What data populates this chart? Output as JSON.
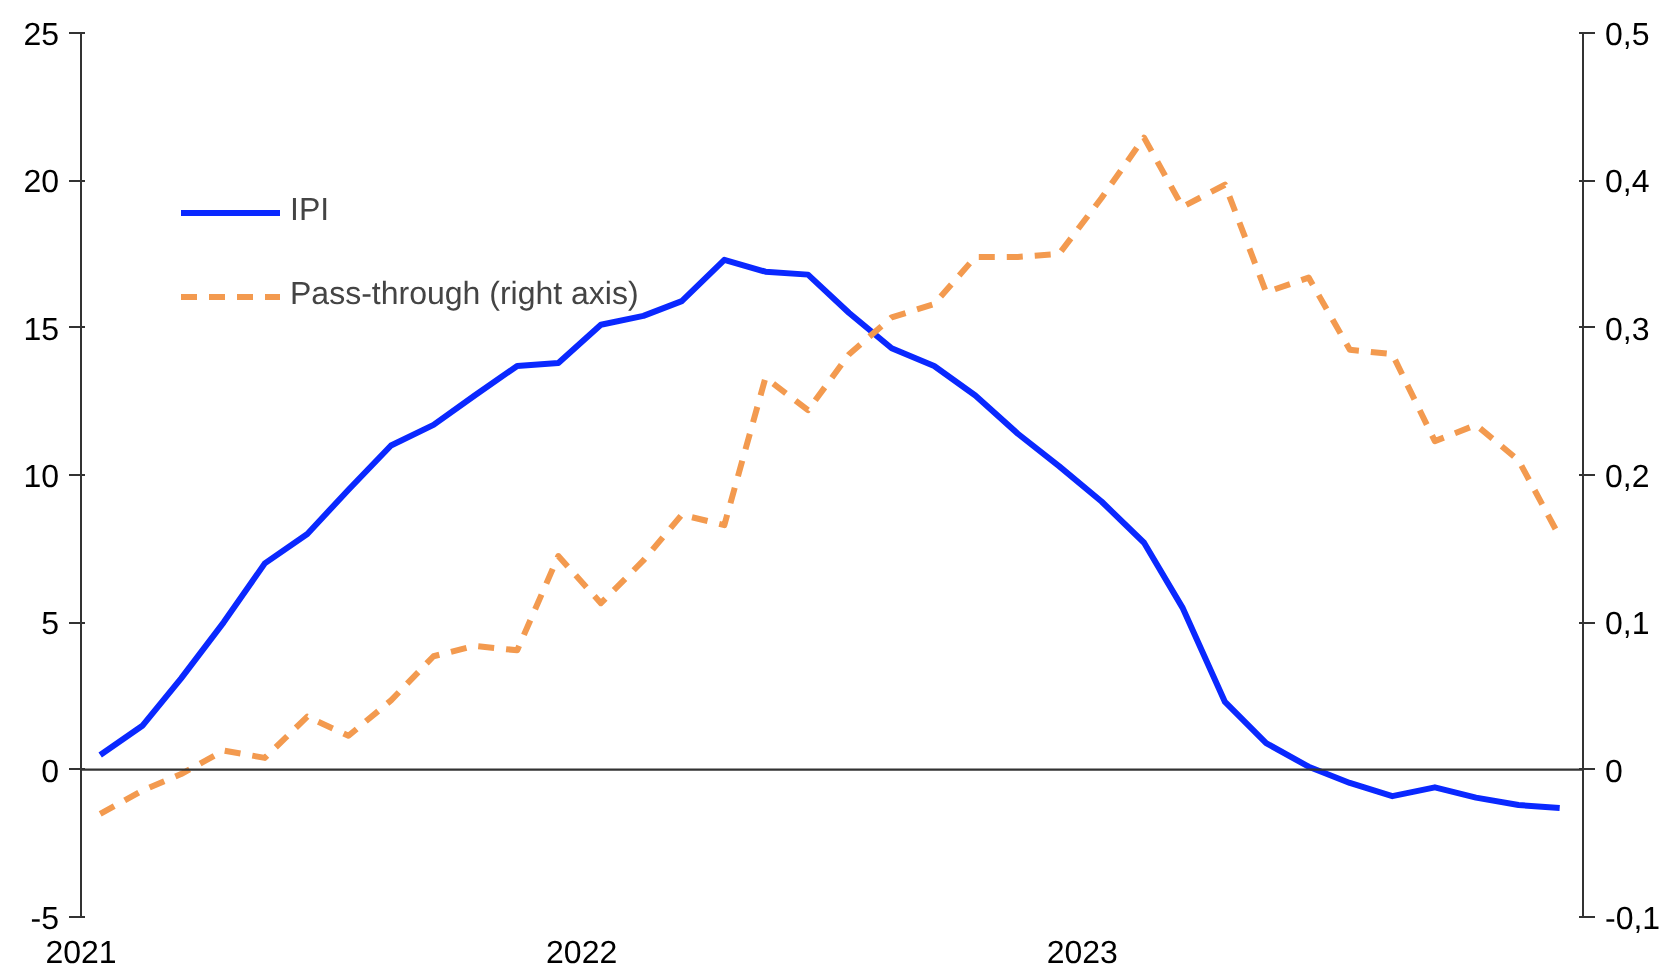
{
  "chart_data": {
    "type": "line",
    "x": [
      "2021-01-15",
      "2021-02-15",
      "2021-03-15",
      "2021-04-15",
      "2021-05-15",
      "2021-06-15",
      "2021-07-15",
      "2021-08-15",
      "2021-09-15",
      "2021-10-15",
      "2021-11-15",
      "2021-12-15",
      "2022-01-15",
      "2022-02-15",
      "2022-03-15",
      "2022-04-15",
      "2022-05-15",
      "2022-06-15",
      "2022-07-15",
      "2022-08-15",
      "2022-09-15",
      "2022-10-15",
      "2022-11-15",
      "2022-12-15",
      "2023-01-15",
      "2023-02-15",
      "2023-03-15",
      "2023-04-15",
      "2023-05-15",
      "2023-06-15",
      "2023-07-15",
      "2023-08-15",
      "2023-09-15",
      "2023-10-15",
      "2023-11-15",
      "2023-12-15"
    ],
    "series": [
      {
        "name": "IPI",
        "color": "#0a28ff",
        "line_style": "solid",
        "values": [
          0.5,
          1.5,
          3.1,
          5.0,
          7.0,
          8.0,
          9.5,
          11.0,
          11.7,
          12.7,
          13.7,
          13.8,
          15.1,
          15.4,
          15.9,
          17.3,
          16.9,
          16.8,
          15.5,
          14.3,
          13.7,
          12.7,
          11.4,
          10.3,
          9.1,
          7.7,
          5.5,
          2.3,
          0.9,
          0.1,
          -0.45,
          -0.9,
          -0.6,
          -0.95,
          -1.2,
          -1.3
        ]
      },
      {
        "name": "Pass-through (right axis)",
        "color": "#f39a4f",
        "line_style": "dashed",
        "axis": "y2",
        "values": [
          -0.03,
          -0.014,
          -0.003,
          0.013,
          0.008,
          0.036,
          0.023,
          0.047,
          0.077,
          0.084,
          0.081,
          0.145,
          0.113,
          0.142,
          0.173,
          0.166,
          0.266,
          0.244,
          0.282,
          0.307,
          0.316,
          0.348,
          0.348,
          0.35,
          0.388,
          0.429,
          0.382,
          0.397,
          0.324,
          0.334,
          0.285,
          0.282,
          0.223,
          0.234,
          0.21,
          0.158
        ]
      }
    ],
    "xlim": [
      "2021-01-01",
      "2024-01-01"
    ],
    "xticks": [
      "2021",
      "2022",
      "2023"
    ],
    "ylim": [
      -5,
      25
    ],
    "yticks": [
      -5,
      0,
      5,
      10,
      15,
      20,
      25
    ],
    "y2lim": [
      -0.1,
      0.5
    ],
    "y2ticks": [
      {
        "value": -0.1,
        "label": "-0,1"
      },
      0,
      {
        "value": 0.1,
        "label": "0,1"
      },
      {
        "value": 0.2,
        "label": "0,2"
      },
      {
        "value": 0.3,
        "label": "0,3"
      },
      {
        "value": 0.4,
        "label": "0,4"
      },
      {
        "value": 0.5,
        "label": "0,5"
      }
    ],
    "ref_lines": [
      {
        "axis": "y",
        "value": 0,
        "color": "#333333"
      }
    ],
    "grid": false,
    "legend": "top left"
  }
}
